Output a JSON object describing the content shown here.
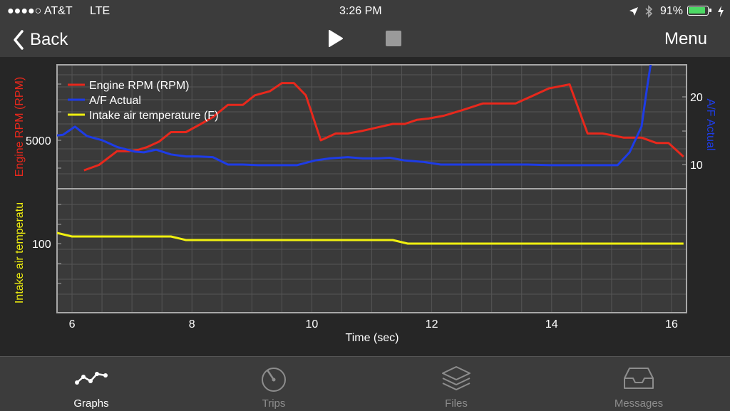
{
  "status_bar": {
    "carrier": "●●●●○ AT&T",
    "network": "LTE",
    "time": "3:26 PM",
    "battery_percent": "91%",
    "battery_level": 0.91
  },
  "nav_bar": {
    "back_label": "Back",
    "menu_label": "Menu"
  },
  "tabs": [
    {
      "label": "Graphs",
      "icon": "graph-icon",
      "active": true
    },
    {
      "label": "Trips",
      "icon": "gauge-icon",
      "active": false
    },
    {
      "label": "Files",
      "icon": "layers-icon",
      "active": false
    },
    {
      "label": "Messages",
      "icon": "inbox-icon",
      "active": false
    }
  ],
  "colors": {
    "rpm": "#e8281c",
    "af": "#1e3ce6",
    "iat": "#f0f010",
    "grid": "#555555",
    "plot_bg": "#3a3a3a"
  },
  "chart_data": [
    {
      "type": "line",
      "x_ticks": [
        6,
        8,
        10,
        12,
        14,
        16
      ],
      "xlim": [
        5.75,
        16.25
      ],
      "xlabel": "Time (sec)",
      "y_left_label": "Engine RPM (RPM)",
      "y_left_ticks": [
        5000
      ],
      "y_right_label": "A/F Actual",
      "y_right_ticks": [
        10,
        20
      ],
      "right_ylim": [
        6.9,
        26.4
      ],
      "legend_position": "top-left",
      "series": [
        {
          "name": "Engine RPM (RPM)",
          "axis": "left",
          "color": "#e8281c",
          "x": [
            6.2,
            6.45,
            6.75,
            6.95,
            7.1,
            7.25,
            7.45,
            7.65,
            7.9,
            8.15,
            8.35,
            8.6,
            8.85,
            9.05,
            9.3,
            9.5,
            9.7,
            9.9,
            10.15,
            10.4,
            10.6,
            10.85,
            11.15,
            11.35,
            11.55,
            11.75,
            11.95,
            12.2,
            12.5,
            12.85,
            13.15,
            13.4,
            13.65,
            13.95,
            14.3,
            14.6,
            14.85,
            15.2,
            15.5,
            15.75,
            15.95,
            16.2
          ],
          "y": [
            2800,
            3200,
            4200,
            4200,
            4300,
            4500,
            4900,
            5600,
            5600,
            6200,
            6700,
            7600,
            7600,
            8300,
            8600,
            9200,
            9200,
            8300,
            5000,
            5500,
            5500,
            5700,
            6000,
            6200,
            6200,
            6500,
            6600,
            6800,
            7200,
            7700,
            7700,
            7700,
            8200,
            8800,
            9100,
            5500,
            5500,
            5200,
            5200,
            4800,
            4800,
            3800
          ]
        },
        {
          "name": "A/F Actual",
          "axis": "right",
          "color": "#1e3ce6",
          "x": [
            5.75,
            5.85,
            6.05,
            6.25,
            6.5,
            6.75,
            7.05,
            7.2,
            7.4,
            7.65,
            7.9,
            8.1,
            8.35,
            8.6,
            8.85,
            9.1,
            9.4,
            9.75,
            10.05,
            10.3,
            10.6,
            10.85,
            11.1,
            11.3,
            11.55,
            11.85,
            12.15,
            12.4,
            12.8,
            13.2,
            13.6,
            14.0,
            14.4,
            14.8,
            15.1,
            15.3,
            15.5,
            15.6,
            15.68
          ],
          "y": [
            14.3,
            14.4,
            15.6,
            14.2,
            13.6,
            12.6,
            11.9,
            11.8,
            12.2,
            11.5,
            11.2,
            11.2,
            11.1,
            10.0,
            10.0,
            9.9,
            9.9,
            9.9,
            10.6,
            10.9,
            11.1,
            10.9,
            10.9,
            11.0,
            10.6,
            10.4,
            10.0,
            10.0,
            10.0,
            10.0,
            10.0,
            9.9,
            9.9,
            9.9,
            9.9,
            11.8,
            15.6,
            21.8,
            26.4
          ]
        }
      ]
    },
    {
      "type": "line",
      "x_ticks": [
        6,
        8,
        10,
        12,
        14,
        16
      ],
      "xlim": [
        5.75,
        16.25
      ],
      "ylabel": "Intake air temperatu",
      "y_ticks": [
        100
      ],
      "series": [
        {
          "name": "Intake air temperature (F)",
          "color": "#f0f010",
          "x": [
            5.75,
            6.0,
            7.65,
            7.9,
            11.35,
            11.6,
            16.2
          ],
          "y": [
            102.4,
            101.6,
            101.6,
            100.8,
            100.8,
            100.0,
            100.0
          ]
        }
      ]
    }
  ]
}
